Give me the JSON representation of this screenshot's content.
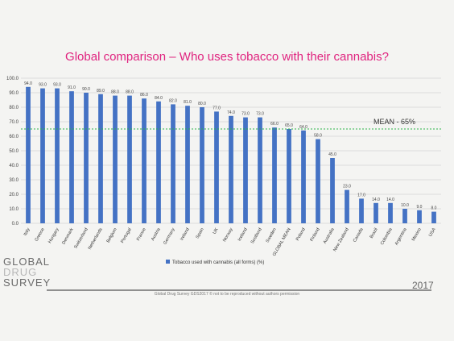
{
  "title": "Global comparison – Who uses tobacco with their cannabis?",
  "chart_data": {
    "type": "bar",
    "categories": [
      "Italy",
      "Greece",
      "Hungary",
      "Denmark",
      "Switzerland",
      "Netherlands",
      "Belgium",
      "Portugal",
      "France",
      "Austria",
      "Germany",
      "Ireland",
      "Spain",
      "UK",
      "Norway",
      "Iceland",
      "Scotland",
      "Sweden",
      "GLOBAL MEAN",
      "Poland",
      "Finland",
      "Australia",
      "New Zealand",
      "Canada",
      "Brazil",
      "Colombia",
      "Argentina",
      "Mexico",
      "USA"
    ],
    "series": [
      {
        "name": "Tobacco used with cannabis (all forms) (%)",
        "values": [
          94.0,
          93.0,
          93.0,
          91.0,
          90.0,
          89.0,
          88.0,
          88.0,
          86.0,
          84.0,
          82.0,
          81.0,
          80.0,
          77.0,
          74.0,
          73.0,
          73.0,
          66.0,
          65.0,
          64.0,
          58.0,
          45.0,
          23.0,
          17.0,
          14.0,
          14.0,
          10.0,
          9.0,
          8.0
        ]
      }
    ],
    "data_labels": [
      "94.0",
      "93.0",
      "93.0",
      "91.0",
      "90.0",
      "89.0",
      "88.0",
      "88.0",
      "86.0",
      "84.0",
      "82.0",
      "81.0",
      "80.0",
      "77.0",
      "74.0",
      "73.0",
      "73.0",
      "66.0",
      "65.0",
      "64.0",
      "58.0",
      "45.0",
      "23.0",
      "17.0",
      "14.0",
      "14.0",
      "10.0",
      "9.0",
      "8.0"
    ],
    "yticks": [
      "0.0",
      "10.0",
      "20.0",
      "30.0",
      "40.0",
      "50.0",
      "60.0",
      "70.0",
      "80.0",
      "90.0",
      "100.0"
    ],
    "ylim": [
      0,
      100
    ],
    "mean_line": {
      "value": 65,
      "label": "MEAN - 65%"
    },
    "grid": true,
    "legend_position": "bottom",
    "bar_color": "#4472c4",
    "mean_color": "#2db34a"
  },
  "logo": {
    "line1": "GLOBAL",
    "line2": "DRUG",
    "line3": "SURVEY"
  },
  "year": "2017",
  "copyright": "Global Drug Survey GDS2017 © not to be reproduced without authors permission"
}
